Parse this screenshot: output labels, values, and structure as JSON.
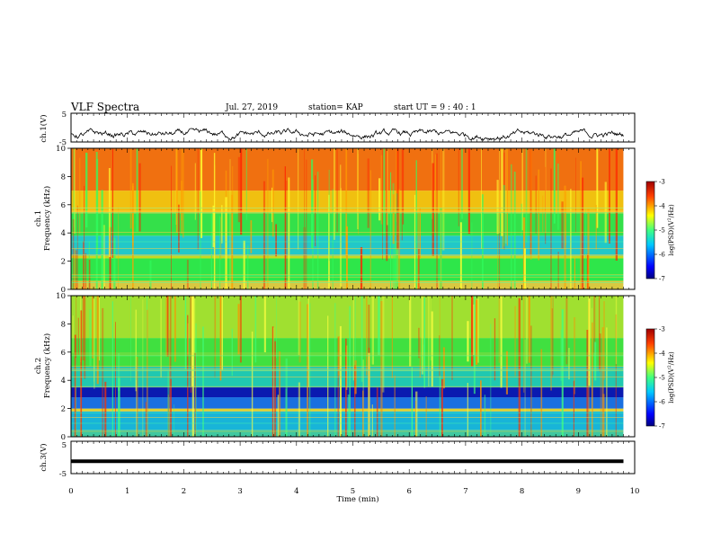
{
  "header": {
    "title": "VLF Spectra",
    "date": "Jul. 27, 2019",
    "station": "station= KAP",
    "start": "start  UT =  9 : 40 : 1"
  },
  "chart_data": [
    {
      "type": "line",
      "panel": "ch1-waveform",
      "ylabel": "ch.1(V)",
      "ylim": [
        -5,
        5
      ],
      "yticks": [
        "5",
        "-5"
      ],
      "xlim": [
        0,
        10
      ],
      "x_end": 9.8,
      "values_desc": "noisy waveform centered near -2.5 V, amplitude roughly +/-1.5 V",
      "color": "#000000"
    },
    {
      "type": "heatmap",
      "panel": "ch1-spectrogram",
      "ylabel": "ch.1 Frequency (kHz)",
      "ylim": [
        0,
        10
      ],
      "yticks": [
        "0",
        "2",
        "4",
        "6",
        "8",
        "10"
      ],
      "xlim": [
        0,
        10
      ],
      "x_end": 9.8,
      "bands": [
        {
          "from": 0.0,
          "to": 0.6,
          "color": "#d8c840"
        },
        {
          "from": 0.6,
          "to": 2.2,
          "color": "#2ee64a"
        },
        {
          "from": 2.2,
          "to": 2.4,
          "color": "#c8d820"
        },
        {
          "from": 2.4,
          "to": 3.8,
          "color": "#22c8c8"
        },
        {
          "from": 3.8,
          "to": 5.4,
          "color": "#34e04a"
        },
        {
          "from": 5.4,
          "to": 7.0,
          "color": "#f0c010"
        },
        {
          "from": 7.0,
          "to": 10.0,
          "color": "#f07010"
        }
      ],
      "colorbar": {
        "label": "log(PSD)(V^2/Hz)",
        "range": [
          -7,
          -3
        ],
        "ticks": [
          "-3",
          "-4",
          "-5",
          "-6",
          "-7"
        ]
      }
    },
    {
      "type": "heatmap",
      "panel": "ch2-spectrogram",
      "ylabel": "ch.2 Frequency (kHz)",
      "ylim": [
        0,
        10
      ],
      "yticks": [
        "0",
        "2",
        "4",
        "6",
        "8",
        "10"
      ],
      "xlim": [
        0,
        10
      ],
      "x_end": 9.8,
      "bands": [
        {
          "from": 0.0,
          "to": 0.5,
          "color": "#40c8a0"
        },
        {
          "from": 0.5,
          "to": 1.8,
          "color": "#18b4d8"
        },
        {
          "from": 1.8,
          "to": 2.0,
          "color": "#e0d030"
        },
        {
          "from": 2.0,
          "to": 2.8,
          "color": "#1a70e0"
        },
        {
          "from": 2.8,
          "to": 3.5,
          "color": "#0a1ab0"
        },
        {
          "from": 3.5,
          "to": 5.0,
          "color": "#20c8b0"
        },
        {
          "from": 5.0,
          "to": 7.0,
          "color": "#40e040"
        },
        {
          "from": 7.0,
          "to": 10.0,
          "color": "#a0e030"
        }
      ],
      "colorbar": {
        "label": "log(PSD)(V^2/Hz)",
        "range": [
          -7,
          -3
        ],
        "ticks": [
          "-3",
          "-4",
          "-5",
          "-6",
          "-7"
        ]
      }
    },
    {
      "type": "line",
      "panel": "ch3-waveform",
      "ylabel": "ch.3(V)",
      "ylim": [
        -5,
        5
      ],
      "yticks": [
        "5",
        "-5"
      ],
      "xlim": [
        0,
        10
      ],
      "x_end": 9.8,
      "values": [
        [
          0,
          -1.2
        ],
        [
          9.8,
          -1.2
        ]
      ],
      "color": "#000000"
    }
  ],
  "xaxis": {
    "label": "Time (min)",
    "ticks": [
      "0",
      "1",
      "2",
      "3",
      "4",
      "5",
      "6",
      "7",
      "8",
      "9",
      "10"
    ]
  },
  "colors": {
    "jet": [
      "#00007f",
      "#0000ff",
      "#007fff",
      "#00ffff",
      "#7fff7f",
      "#ffff00",
      "#ff7f00",
      "#ff0000",
      "#7f0000"
    ]
  }
}
